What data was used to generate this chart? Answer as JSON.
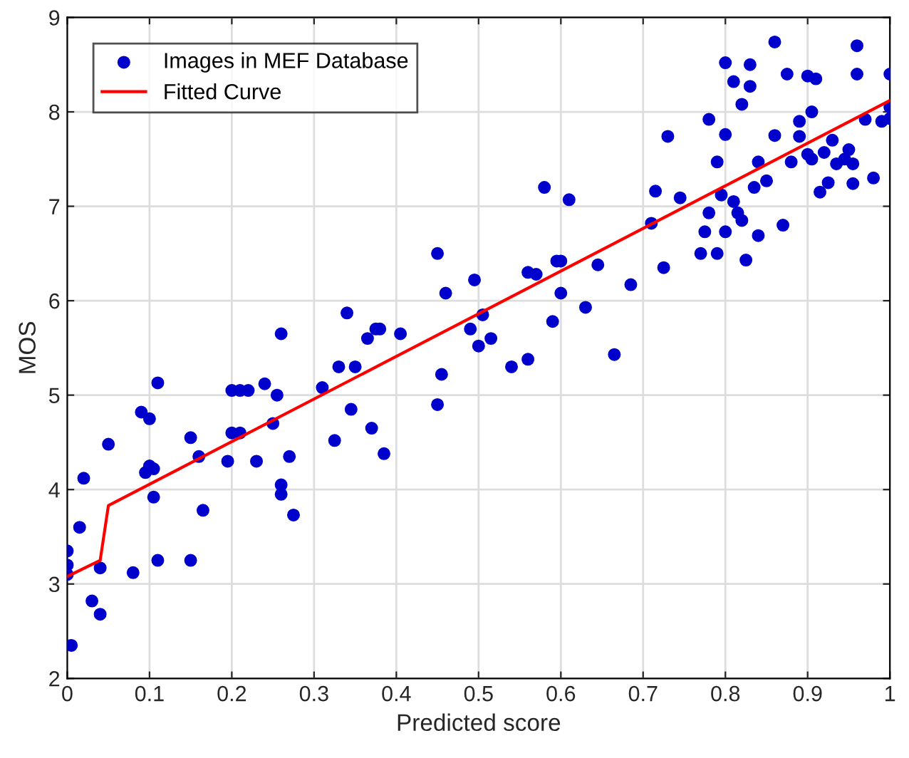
{
  "chart_data": {
    "type": "scatter",
    "xlabel": "Predicted score",
    "ylabel": "MOS",
    "xlim": [
      0,
      1
    ],
    "ylim": [
      2,
      9
    ],
    "xticks": [
      0,
      0.1,
      0.2,
      0.3,
      0.4,
      0.5,
      0.6,
      0.7,
      0.8,
      0.9,
      1
    ],
    "yticks": [
      2,
      3,
      4,
      5,
      6,
      7,
      8,
      9
    ],
    "grid": true,
    "legend": "top left",
    "series": [
      {
        "name": "Images in MEF Database",
        "marker": "circle",
        "color": "#0000cc",
        "x": [
          0,
          0,
          0,
          0.005,
          0.015,
          0.02,
          0.03,
          0.04,
          0.04,
          0.05,
          0.08,
          0.09,
          0.095,
          0.1,
          0.1,
          0.105,
          0.105,
          0.11,
          0.11,
          0.15,
          0.15,
          0.16,
          0.165,
          0.195,
          0.2,
          0.2,
          0.21,
          0.21,
          0.22,
          0.23,
          0.24,
          0.25,
          0.255,
          0.26,
          0.26,
          0.26,
          0.27,
          0.275,
          0.31,
          0.325,
          0.33,
          0.34,
          0.345,
          0.35,
          0.365,
          0.37,
          0.375,
          0.38,
          0.385,
          0.405,
          0.45,
          0.45,
          0.455,
          0.46,
          0.49,
          0.495,
          0.5,
          0.505,
          0.515,
          0.54,
          0.56,
          0.56,
          0.57,
          0.58,
          0.59,
          0.595,
          0.6,
          0.6,
          0.61,
          0.63,
          0.645,
          0.665,
          0.685,
          0.71,
          0.715,
          0.725,
          0.73,
          0.745,
          0.77,
          0.775,
          0.78,
          0.78,
          0.79,
          0.79,
          0.795,
          0.8,
          0.8,
          0.8,
          0.81,
          0.81,
          0.815,
          0.82,
          0.82,
          0.825,
          0.83,
          0.83,
          0.835,
          0.84,
          0.84,
          0.85,
          0.86,
          0.86,
          0.87,
          0.875,
          0.88,
          0.89,
          0.89,
          0.9,
          0.9,
          0.905,
          0.905,
          0.91,
          0.915,
          0.92,
          0.925,
          0.93,
          0.935,
          0.945,
          0.95,
          0.955,
          0.955,
          0.96,
          0.96,
          0.97,
          0.98,
          0.99,
          1,
          1,
          1
        ],
        "values": [
          3.35,
          3.2,
          3.1,
          2.35,
          3.6,
          4.12,
          2.82,
          2.68,
          3.17,
          4.48,
          3.12,
          4.82,
          4.18,
          4.75,
          4.25,
          4.22,
          3.92,
          3.25,
          5.13,
          4.55,
          3.25,
          4.35,
          3.78,
          4.3,
          5.05,
          4.6,
          5.05,
          4.6,
          5.05,
          4.3,
          5.12,
          4.7,
          5.0,
          4.05,
          3.95,
          5.65,
          4.35,
          3.73,
          5.08,
          4.52,
          5.3,
          5.87,
          4.85,
          5.3,
          5.6,
          4.65,
          5.7,
          5.7,
          4.38,
          5.65,
          6.5,
          4.9,
          5.22,
          6.08,
          5.7,
          6.22,
          5.52,
          5.85,
          5.6,
          5.3,
          5.38,
          6.3,
          6.28,
          7.2,
          5.78,
          6.42,
          6.42,
          6.08,
          7.07,
          5.93,
          6.38,
          5.43,
          6.17,
          6.82,
          7.16,
          6.35,
          7.74,
          7.09,
          6.5,
          6.73,
          6.93,
          7.92,
          7.47,
          6.5,
          7.12,
          6.73,
          7.76,
          8.52,
          7.05,
          8.32,
          6.93,
          6.85,
          8.08,
          6.43,
          8.27,
          8.5,
          7.2,
          6.69,
          7.47,
          7.27,
          8.74,
          7.75,
          6.8,
          8.4,
          7.47,
          7.9,
          7.74,
          7.55,
          8.38,
          7.5,
          8.0,
          8.35,
          7.15,
          7.57,
          7.25,
          7.7,
          7.45,
          7.5,
          7.6,
          7.45,
          7.24,
          8.7,
          8.4,
          7.92,
          7.3,
          7.9,
          8.4,
          8.05,
          7.93
        ]
      },
      {
        "name": "Fitted Curve",
        "type": "line",
        "marker": "none",
        "line_style": "solid",
        "color": "#ff0000",
        "x": [
          0,
          0.04,
          0.05,
          1
        ],
        "values": [
          3.08,
          3.25,
          3.83,
          8.12
        ]
      }
    ]
  }
}
